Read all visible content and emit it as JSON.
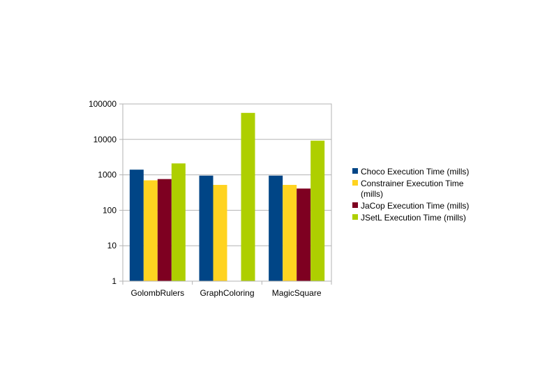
{
  "chart_data": {
    "type": "bar",
    "title": "",
    "xlabel": "",
    "ylabel": "",
    "y_scale": "log",
    "ylim": [
      1,
      100000
    ],
    "y_ticks": [
      "1",
      "10",
      "100",
      "1000",
      "10000",
      "100000"
    ],
    "grid": "horizontal",
    "legend_position": "right",
    "categories": [
      "GolombRulers",
      "GraphColoring",
      "MagicSquare"
    ],
    "series": [
      {
        "name": "Choco Execution Time (mills)",
        "legend_lines": [
          "Choco Execution Time (mills)"
        ],
        "color": "#004586",
        "values": [
          1400,
          950,
          950
        ]
      },
      {
        "name": "Constrainer Execution Time (mills)",
        "legend_lines": [
          "Constrainer Execution Time",
          "(mills)"
        ],
        "color": "#ffd320",
        "values": [
          700,
          520,
          520
        ]
      },
      {
        "name": "JaCop Execution Time (mills)",
        "legend_lines": [
          "JaCop Execution Time (mills)"
        ],
        "color": "#7e0021",
        "values": [
          760,
          null,
          410
        ]
      },
      {
        "name": "JSetL Execution Time (mills)",
        "legend_lines": [
          "JSetL Execution Time (mills)"
        ],
        "color": "#aecf00",
        "values": [
          2100,
          56000,
          9200
        ]
      }
    ]
  }
}
